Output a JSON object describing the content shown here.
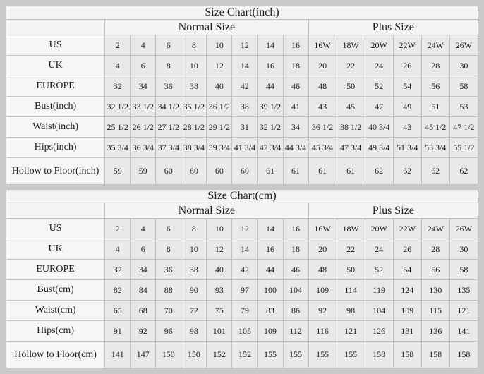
{
  "colors": {
    "page_bg": "#c9c9c9",
    "header_bg": "#f3f3f3",
    "label_bg": "#f6f6f6",
    "cell_bg": "#e9e9e9",
    "border": "#c2c2c2",
    "text": "#1c1c1c"
  },
  "chart_data": [
    {
      "type": "table",
      "title": "Size Chart(inch)",
      "column_groups": [
        {
          "label": "Normal Size",
          "span": 8
        },
        {
          "label": "Plus Size",
          "span": 6
        }
      ],
      "rows": [
        {
          "label": "US",
          "values": [
            "2",
            "4",
            "6",
            "8",
            "10",
            "12",
            "14",
            "16",
            "16W",
            "18W",
            "20W",
            "22W",
            "24W",
            "26W"
          ]
        },
        {
          "label": "UK",
          "values": [
            "4",
            "6",
            "8",
            "10",
            "12",
            "14",
            "16",
            "18",
            "20",
            "22",
            "24",
            "26",
            "28",
            "30"
          ]
        },
        {
          "label": "EUROPE",
          "values": [
            "32",
            "34",
            "36",
            "38",
            "40",
            "42",
            "44",
            "46",
            "48",
            "50",
            "52",
            "54",
            "56",
            "58"
          ]
        },
        {
          "label": "Bust(inch)",
          "values": [
            "32 1/2",
            "33 1/2",
            "34 1/2",
            "35 1/2",
            "36 1/2",
            "38",
            "39 1/2",
            "41",
            "43",
            "45",
            "47",
            "49",
            "51",
            "53"
          ]
        },
        {
          "label": "Waist(inch)",
          "values": [
            "25 1/2",
            "26 1/2",
            "27 1/2",
            "28 1/2",
            "29 1/2",
            "31",
            "32 1/2",
            "34",
            "36 1/2",
            "38 1/2",
            "40 3/4",
            "43",
            "45 1/2",
            "47 1/2"
          ]
        },
        {
          "label": "Hips(inch)",
          "values": [
            "35 3/4",
            "36 3/4",
            "37 3/4",
            "38 3/4",
            "39 3/4",
            "41 3/4",
            "42 3/4",
            "44 3/4",
            "45 3/4",
            "47 3/4",
            "49 3/4",
            "51 3/4",
            "53 3/4",
            "55 1/2"
          ]
        },
        {
          "label": "Hollow to Floor(inch)",
          "values": [
            "59",
            "59",
            "60",
            "60",
            "60",
            "60",
            "61",
            "61",
            "61",
            "61",
            "62",
            "62",
            "62",
            "62"
          ]
        }
      ]
    },
    {
      "type": "table",
      "title": "Size Chart(cm)",
      "column_groups": [
        {
          "label": "Normal Size",
          "span": 8
        },
        {
          "label": "Plus Size",
          "span": 6
        }
      ],
      "rows": [
        {
          "label": "US",
          "values": [
            "2",
            "4",
            "6",
            "8",
            "10",
            "12",
            "14",
            "16",
            "16W",
            "18W",
            "20W",
            "22W",
            "24W",
            "26W"
          ]
        },
        {
          "label": "UK",
          "values": [
            "4",
            "6",
            "8",
            "10",
            "12",
            "14",
            "16",
            "18",
            "20",
            "22",
            "24",
            "26",
            "28",
            "30"
          ]
        },
        {
          "label": "EUROPE",
          "values": [
            "32",
            "34",
            "36",
            "38",
            "40",
            "42",
            "44",
            "46",
            "48",
            "50",
            "52",
            "54",
            "56",
            "58"
          ]
        },
        {
          "label": "Bust(cm)",
          "values": [
            "82",
            "84",
            "88",
            "90",
            "93",
            "97",
            "100",
            "104",
            "109",
            "114",
            "119",
            "124",
            "130",
            "135"
          ]
        },
        {
          "label": "Waist(cm)",
          "values": [
            "65",
            "68",
            "70",
            "72",
            "75",
            "79",
            "83",
            "86",
            "92",
            "98",
            "104",
            "109",
            "115",
            "121"
          ]
        },
        {
          "label": "Hips(cm)",
          "values": [
            "91",
            "92",
            "96",
            "98",
            "101",
            "105",
            "109",
            "112",
            "116",
            "121",
            "126",
            "131",
            "136",
            "141"
          ]
        },
        {
          "label": "Hollow to Floor(cm)",
          "values": [
            "141",
            "147",
            "150",
            "150",
            "152",
            "152",
            "155",
            "155",
            "155",
            "155",
            "158",
            "158",
            "158",
            "158"
          ]
        }
      ]
    }
  ]
}
